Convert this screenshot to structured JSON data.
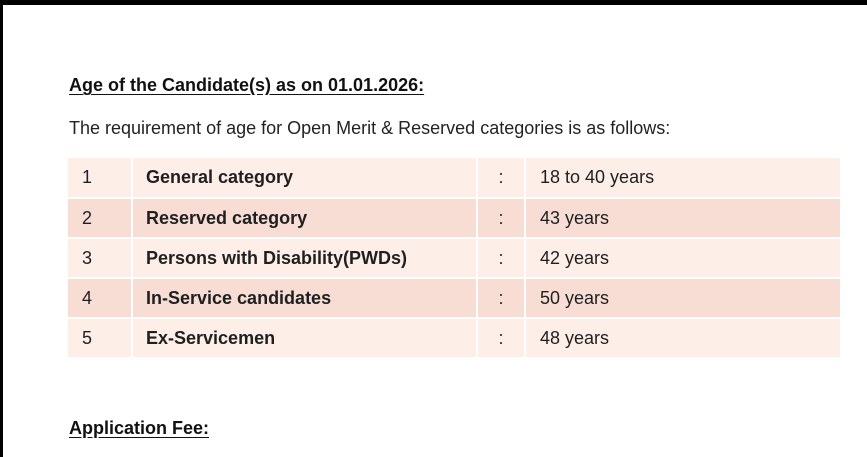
{
  "age_section": {
    "heading": "Age of the Candidate(s) as on 01.01.2026:",
    "intro": "The requirement of age for Open Merit & Reserved categories is as follows:",
    "rows": [
      {
        "num": "1",
        "category": "General category",
        "sep": ":",
        "value": "18 to 40 years"
      },
      {
        "num": "2",
        "category": "Reserved category",
        "sep": ":",
        "value": "43 years"
      },
      {
        "num": "3",
        "category": "Persons with Disability(PWDs)",
        "sep": ":",
        "value": "42 years"
      },
      {
        "num": "4",
        "category": "In-Service candidates",
        "sep": ":",
        "value": "50 years"
      },
      {
        "num": "5",
        "category": "Ex-Servicemen",
        "sep": ":",
        "value": "48 years"
      }
    ]
  },
  "fee_section": {
    "heading": "Application Fee:"
  },
  "colors": {
    "row_light": "#fdeee8",
    "row_dark": "#f8ddd5",
    "frame_border": "#000000"
  }
}
